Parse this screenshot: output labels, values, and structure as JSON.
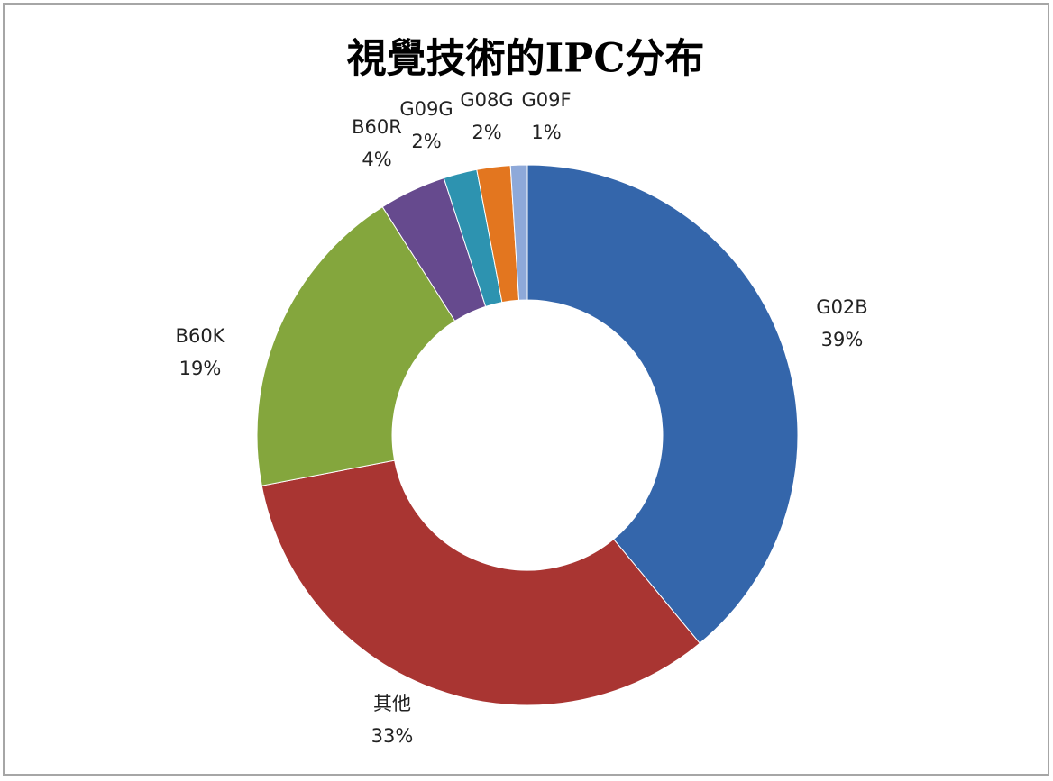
{
  "chart_data": {
    "type": "donut",
    "title": "視覺技術的IPC分布",
    "categories": [
      "G02B",
      "其他",
      "B60K",
      "B60R",
      "G09G",
      "G08G",
      "G09F"
    ],
    "values": [
      39,
      33,
      19,
      4,
      2,
      2,
      1
    ],
    "value_labels": [
      "39%",
      "33%",
      "19%",
      "4%",
      "2%",
      "2%",
      "1%"
    ],
    "colors": [
      "#3466ab",
      "#a93532",
      "#84a63d",
      "#664a8e",
      "#2d93b0",
      "#e3761f",
      "#8ea9d9"
    ]
  }
}
